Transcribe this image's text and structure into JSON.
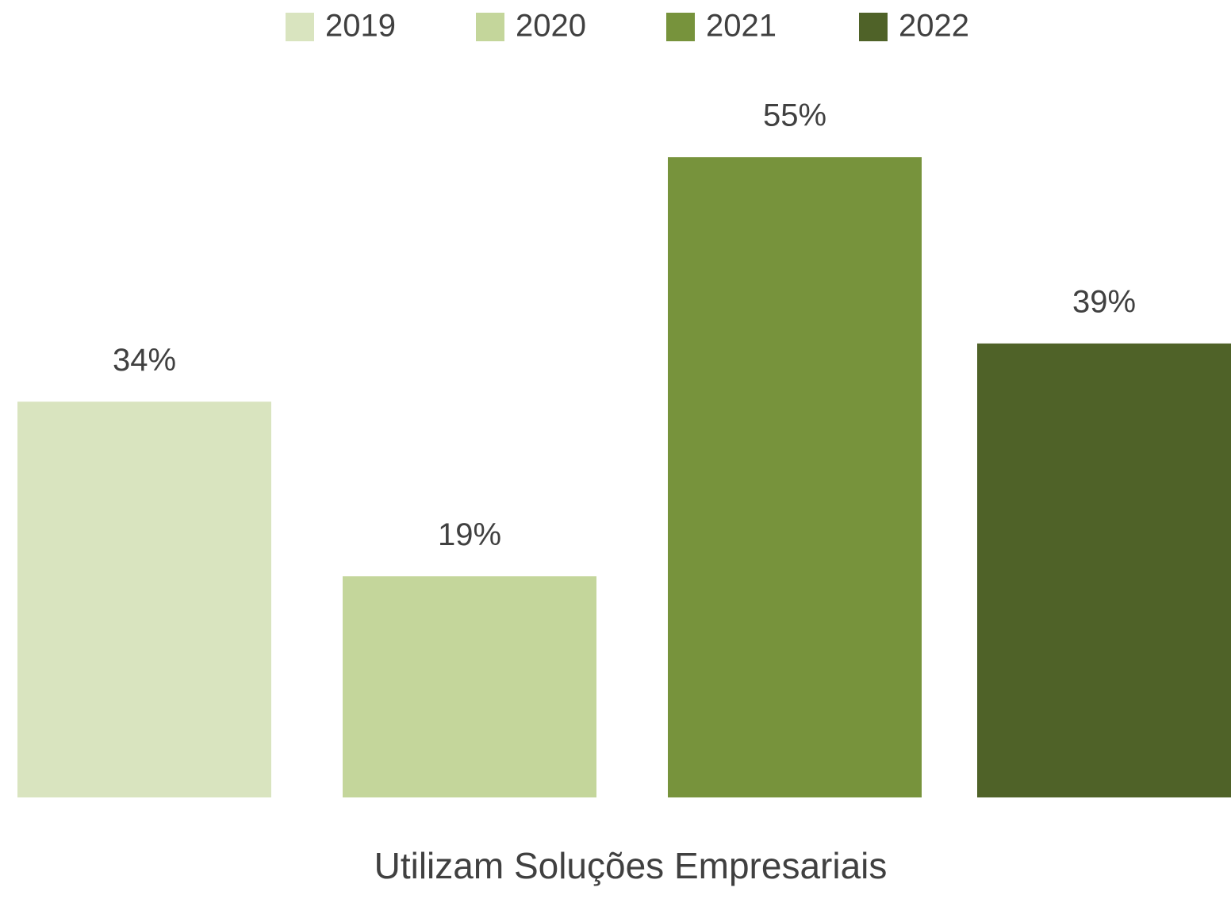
{
  "chart_data": {
    "type": "bar",
    "categories": [
      "Utilizam Soluções Empresariais"
    ],
    "series": [
      {
        "name": "2019",
        "color": "#d9e4bf",
        "values": [
          34
        ],
        "value_labels": [
          "34%"
        ]
      },
      {
        "name": "2020",
        "color": "#c4d69b",
        "values": [
          19
        ],
        "value_labels": [
          "19%"
        ]
      },
      {
        "name": "2021",
        "color": "#77933c",
        "values": [
          55
        ],
        "value_labels": [
          "55%"
        ]
      },
      {
        "name": "2022",
        "color": "#4f6228",
        "values": [
          39
        ],
        "value_labels": [
          "39%"
        ]
      }
    ]
  }
}
